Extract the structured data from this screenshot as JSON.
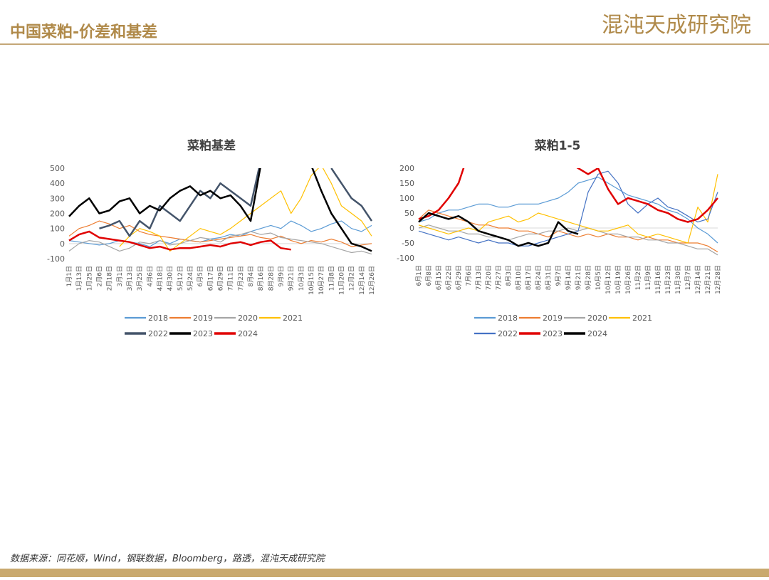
{
  "header": {
    "title": "中国菜粕-价差和基差",
    "logo": "混沌天成研究院"
  },
  "footer": {
    "source": "数据来源：同花顺，Wind，钢联数据，Bloomberg，路透，混沌天成研究院"
  },
  "chart_data": [
    {
      "type": "line",
      "title": "菜粕基差",
      "categories": [
        "1月1日",
        "1月13日",
        "1月25日",
        "2月6日",
        "2月18日",
        "3月1日",
        "3月13日",
        "3月25日",
        "4月6日",
        "4月18日",
        "4月30日",
        "5月12日",
        "5月24日",
        "6月5日",
        "6月17日",
        "6月29日",
        "7月11日",
        "7月23日",
        "8月4日",
        "8月16日",
        "8月28日",
        "9月9日",
        "9月21日",
        "10月3日",
        "10月15日",
        "10月27日",
        "11月8日",
        "11月20日",
        "12月2日",
        "12月14日",
        "12月26日"
      ],
      "ylim": [
        -100,
        500
      ],
      "yticks": [
        -100,
        0,
        100,
        200,
        300,
        400,
        500
      ],
      "series": [
        {
          "name": "2018",
          "color": "#5b9bd5",
          "width": 1.2,
          "values": [
            20,
            10,
            0,
            -10,
            0,
            20,
            10,
            0,
            -20,
            20,
            0,
            30,
            20,
            10,
            30,
            40,
            60,
            50,
            80,
            100,
            120,
            100,
            150,
            120,
            80,
            100,
            130,
            150,
            100,
            80,
            120
          ]
        },
        {
          "name": "2019",
          "color": "#ed7d31",
          "width": 1.2,
          "values": [
            50,
            100,
            120,
            150,
            130,
            100,
            120,
            80,
            60,
            50,
            40,
            30,
            20,
            10,
            20,
            30,
            40,
            50,
            60,
            40,
            30,
            50,
            20,
            0,
            20,
            10,
            30,
            10,
            -20,
            -10,
            0
          ]
        },
        {
          "name": "2020",
          "color": "#a5a5a5",
          "width": 1.2,
          "values": [
            -50,
            0,
            20,
            10,
            -20,
            -50,
            -30,
            10,
            0,
            20,
            -10,
            0,
            20,
            40,
            30,
            10,
            50,
            60,
            80,
            60,
            70,
            40,
            30,
            20,
            10,
            0,
            -20,
            -40,
            -60,
            -50,
            -70
          ]
        },
        {
          "name": "2021",
          "color": "#ffc000",
          "width": 1.2,
          "values": [
            null,
            null,
            null,
            null,
            null,
            -20,
            50,
            100,
            80,
            50,
            -50,
            0,
            50,
            100,
            80,
            60,
            100,
            150,
            200,
            250,
            300,
            350,
            200,
            300,
            450,
            520,
            400,
            250,
            200,
            150,
            50
          ]
        },
        {
          "name": "2022",
          "color": "#44546a",
          "width": 2.5,
          "values": [
            null,
            null,
            null,
            100,
            120,
            150,
            50,
            150,
            100,
            250,
            200,
            150,
            250,
            350,
            300,
            400,
            350,
            300,
            250,
            550,
            null,
            null,
            null,
            null,
            null,
            null,
            500,
            400,
            300,
            250,
            150
          ]
        },
        {
          "name": "2023",
          "color": "#000000",
          "width": 2.5,
          "values": [
            180,
            250,
            300,
            200,
            220,
            280,
            300,
            200,
            250,
            220,
            300,
            350,
            380,
            320,
            350,
            300,
            320,
            250,
            150,
            520,
            null,
            null,
            null,
            null,
            520,
            350,
            200,
            100,
            0,
            -20,
            -50
          ]
        },
        {
          "name": "2024",
          "color": "#e00000",
          "width": 2.5,
          "values": [
            20,
            60,
            80,
            40,
            30,
            20,
            10,
            -10,
            -30,
            -20,
            -40,
            -30,
            -30,
            -20,
            -10,
            -20,
            0,
            10,
            -10,
            10,
            20,
            -30,
            -40,
            null,
            null,
            null,
            null,
            null,
            null,
            null,
            null
          ]
        }
      ]
    },
    {
      "type": "line",
      "title": "菜粕1-5",
      "categories": [
        "6月1日",
        "6月8日",
        "6月15日",
        "6月22日",
        "6月29日",
        "7月6日",
        "7月13日",
        "7月20日",
        "7月27日",
        "8月3日",
        "8月10日",
        "8月17日",
        "8月24日",
        "8月31日",
        "9月7日",
        "9月14日",
        "9月21日",
        "9月28日",
        "10月5日",
        "10月12日",
        "10月19日",
        "10月26日",
        "11月2日",
        "11月9日",
        "11月16日",
        "11月23日",
        "11月30日",
        "12月7日",
        "12月14日",
        "12月21日",
        "12月28日"
      ],
      "ylim": [
        -100,
        200
      ],
      "yticks": [
        -100,
        -50,
        0,
        50,
        100,
        150,
        200
      ],
      "series": [
        {
          "name": "2018",
          "color": "#5b9bd5",
          "width": 1.2,
          "values": [
            20,
            30,
            50,
            60,
            60,
            70,
            80,
            80,
            70,
            70,
            80,
            80,
            80,
            90,
            100,
            120,
            150,
            160,
            170,
            150,
            130,
            110,
            100,
            90,
            80,
            60,
            50,
            30,
            0,
            -20,
            -50
          ]
        },
        {
          "name": "2019",
          "color": "#ed7d31",
          "width": 1.2,
          "values": [
            30,
            60,
            50,
            40,
            30,
            20,
            10,
            10,
            0,
            0,
            -10,
            -10,
            -20,
            -30,
            -10,
            -20,
            -30,
            -20,
            -30,
            -20,
            -30,
            -30,
            -40,
            -30,
            -40,
            -40,
            -50,
            -50,
            -50,
            -60,
            -80
          ]
        },
        {
          "name": "2020",
          "color": "#a5a5a5",
          "width": 1.2,
          "values": [
            0,
            10,
            0,
            -10,
            -10,
            -20,
            -20,
            -30,
            -30,
            -40,
            -30,
            -20,
            -20,
            -10,
            -10,
            0,
            -10,
            0,
            -10,
            -20,
            -20,
            -30,
            -30,
            -40,
            -40,
            -50,
            -50,
            -60,
            -70,
            -70,
            -90
          ]
        },
        {
          "name": "2021",
          "color": "#ffc000",
          "width": 1.2,
          "values": [
            10,
            0,
            -10,
            -20,
            -10,
            0,
            -10,
            20,
            30,
            40,
            20,
            30,
            50,
            40,
            30,
            20,
            10,
            0,
            -10,
            -10,
            0,
            10,
            -20,
            -30,
            -20,
            -30,
            -40,
            -50,
            70,
            20,
            180
          ]
        },
        {
          "name": "2022",
          "color": "#4472c4",
          "width": 1.2,
          "values": [
            -10,
            -20,
            -30,
            -40,
            -30,
            -40,
            -50,
            -40,
            -50,
            -50,
            -60,
            -60,
            -50,
            -40,
            -30,
            -20,
            -10,
            120,
            180,
            190,
            150,
            80,
            50,
            80,
            100,
            70,
            60,
            40,
            20,
            30,
            120
          ]
        },
        {
          "name": "2023",
          "color": "#e00000",
          "width": 2.5,
          "values": [
            30,
            40,
            60,
            100,
            150,
            250,
            null,
            null,
            null,
            null,
            null,
            null,
            null,
            null,
            250,
            220,
            200,
            180,
            200,
            130,
            80,
            100,
            90,
            80,
            60,
            50,
            30,
            20,
            30,
            60,
            100
          ]
        },
        {
          "name": "2024",
          "color": "#000000",
          "width": 2.5,
          "values": [
            20,
            50,
            40,
            30,
            40,
            20,
            -10,
            -20,
            -30,
            -40,
            -60,
            -50,
            -60,
            -50,
            20,
            -10,
            -20,
            null,
            null,
            null,
            null,
            null,
            null,
            null,
            null,
            null,
            null,
            null,
            null,
            null,
            null
          ]
        }
      ]
    }
  ]
}
